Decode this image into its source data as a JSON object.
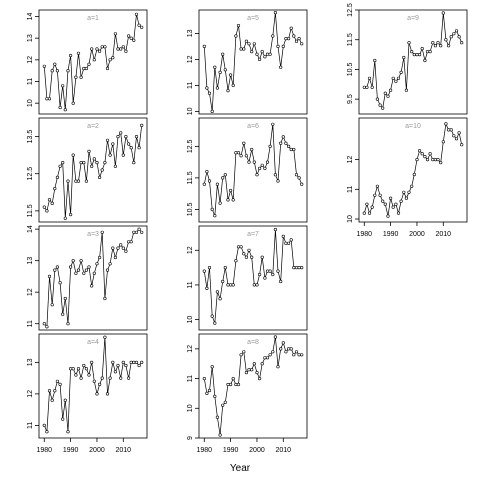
{
  "chart_data": {
    "type": "line",
    "xlabel": "Year",
    "panels": [
      {
        "label": "a=1",
        "ylim": [
          9.5,
          14.3
        ],
        "yticks": [
          10,
          11,
          12,
          13,
          14
        ],
        "xlim": [
          1978,
          2019
        ],
        "xticks": [],
        "x": [
          1980,
          1981,
          1982,
          1983,
          1984,
          1985,
          1986,
          1987,
          1988,
          1989,
          1990,
          1991,
          1992,
          1993,
          1994,
          1995,
          1996,
          1997,
          1998,
          1999,
          2000,
          2001,
          2002,
          2003,
          2004,
          2005,
          2006,
          2007,
          2008,
          2009,
          2010,
          2011,
          2012,
          2013,
          2014,
          2015,
          2016,
          2017
        ],
        "y": [
          11.7,
          10.2,
          10.2,
          11.5,
          11.8,
          11.5,
          9.8,
          10.8,
          9.7,
          11.5,
          12.2,
          10.0,
          11.2,
          12.3,
          11.2,
          11.6,
          11.6,
          11.8,
          12.5,
          12.0,
          12.5,
          12.4,
          12.6,
          12.6,
          11.6,
          12.0,
          12.1,
          13.2,
          12.5,
          12.5,
          12.6,
          12.4,
          13.1,
          13.0,
          12.9,
          14.1,
          13.6,
          13.5
        ]
      },
      {
        "label": "a=5",
        "ylim": [
          9.9,
          13.9
        ],
        "yticks": [
          10,
          11,
          12,
          13
        ],
        "xlim": [
          1978,
          2019
        ],
        "xticks": [],
        "x": [
          1980,
          1981,
          1982,
          1983,
          1984,
          1985,
          1986,
          1987,
          1988,
          1989,
          1990,
          1991,
          1992,
          1993,
          1994,
          1995,
          1996,
          1997,
          1998,
          1999,
          2000,
          2001,
          2002,
          2003,
          2004,
          2005,
          2006,
          2007,
          2008,
          2009,
          2010,
          2011,
          2012,
          2013,
          2014,
          2015,
          2016,
          2017
        ],
        "y": [
          12.5,
          10.9,
          10.7,
          10.0,
          11.7,
          10.9,
          11.5,
          12.2,
          11.6,
          10.8,
          11.4,
          11.0,
          12.9,
          13.3,
          12.4,
          12.4,
          12.7,
          12.6,
          12.3,
          12.6,
          12.2,
          12.0,
          12.3,
          12.1,
          12.2,
          12.2,
          12.9,
          13.8,
          12.5,
          11.7,
          12.5,
          12.8,
          12.8,
          13.2,
          12.9,
          12.7,
          12.8,
          12.6
        ]
      },
      {
        "label": "a=9",
        "ylim": [
          9.0,
          12.5
        ],
        "yticks": [
          9.5,
          10.5,
          11.5,
          12.5
        ],
        "xlim": [
          1978,
          2019
        ],
        "xticks": [],
        "x": [
          1980,
          1981,
          1982,
          1983,
          1984,
          1985,
          1986,
          1987,
          1988,
          1989,
          1990,
          1991,
          1992,
          1993,
          1994,
          1995,
          1996,
          1997,
          1998,
          1999,
          2000,
          2001,
          2002,
          2003,
          2004,
          2005,
          2006,
          2007,
          2008,
          2009,
          2010,
          2011,
          2012,
          2013,
          2014,
          2015,
          2016,
          2017
        ],
        "y": [
          9.9,
          9.9,
          10.2,
          9.9,
          10.8,
          9.5,
          9.3,
          9.2,
          9.7,
          9.6,
          9.8,
          10.2,
          10.1,
          10.2,
          10.4,
          10.9,
          9.8,
          11.4,
          11.1,
          11.0,
          11.0,
          11.0,
          11.2,
          10.8,
          11.1,
          11.1,
          11.4,
          11.3,
          11.4,
          11.3,
          12.4,
          11.5,
          11.3,
          11.6,
          11.7,
          11.8,
          11.6,
          11.4
        ]
      },
      {
        "label": "a=2",
        "ylim": [
          11.2,
          14.0
        ],
        "yticks": [
          11.5,
          12.5,
          13.5
        ],
        "xlim": [
          1978,
          2019
        ],
        "xticks": [],
        "x": [
          1980,
          1981,
          1982,
          1983,
          1984,
          1985,
          1986,
          1987,
          1988,
          1989,
          1990,
          1991,
          1992,
          1993,
          1994,
          1995,
          1996,
          1997,
          1998,
          1999,
          2000,
          2001,
          2002,
          2003,
          2004,
          2005,
          2006,
          2007,
          2008,
          2009,
          2010,
          2011,
          2012,
          2013,
          2014,
          2015,
          2016,
          2017
        ],
        "y": [
          11.6,
          11.5,
          11.8,
          11.7,
          12.1,
          12.4,
          12.7,
          12.8,
          11.3,
          12.3,
          11.4,
          13.0,
          12.3,
          12.3,
          12.8,
          12.8,
          12.3,
          13.1,
          12.7,
          12.9,
          12.8,
          12.4,
          12.6,
          12.8,
          13.4,
          13.0,
          13.3,
          12.7,
          13.5,
          13.6,
          13.0,
          13.5,
          13.3,
          13.2,
          12.8,
          13.5,
          13.2,
          13.8
        ]
      },
      {
        "label": "a=6",
        "ylim": [
          10.1,
          13.4
        ],
        "yticks": [
          10.5,
          11.5,
          12.5
        ],
        "xlim": [
          1978,
          2019
        ],
        "xticks": [],
        "x": [
          1980,
          1981,
          1982,
          1983,
          1984,
          1985,
          1986,
          1987,
          1988,
          1989,
          1990,
          1991,
          1992,
          1993,
          1994,
          1995,
          1996,
          1997,
          1998,
          1999,
          2000,
          2001,
          2002,
          2003,
          2004,
          2005,
          2006,
          2007,
          2008,
          2009,
          2010,
          2011,
          2012,
          2013,
          2014,
          2015,
          2016,
          2017
        ],
        "y": [
          11.3,
          11.7,
          11.4,
          10.5,
          10.3,
          11.3,
          10.7,
          11.5,
          11.6,
          10.8,
          11.1,
          10.8,
          12.3,
          12.3,
          12.2,
          12.6,
          12.2,
          12.0,
          12.4,
          12.0,
          11.6,
          11.8,
          11.9,
          11.8,
          12.0,
          12.5,
          13.2,
          11.6,
          11.4,
          12.6,
          12.8,
          12.6,
          12.5,
          12.4,
          12.4,
          11.6,
          11.5,
          11.3
        ]
      },
      {
        "label": "a=10",
        "ylim": [
          9.9,
          13.4
        ],
        "yticks": [
          10.0,
          11.0,
          12.0
        ],
        "xlim": [
          1978,
          2019
        ],
        "xticks": [
          1980,
          1990,
          2000,
          2010
        ],
        "x": [
          1980,
          1981,
          1982,
          1983,
          1984,
          1985,
          1986,
          1987,
          1988,
          1989,
          1990,
          1991,
          1992,
          1993,
          1994,
          1995,
          1996,
          1997,
          1998,
          1999,
          2000,
          2001,
          2002,
          2003,
          2004,
          2005,
          2006,
          2007,
          2008,
          2009,
          2010,
          2011,
          2012,
          2013,
          2014,
          2015,
          2016,
          2017
        ],
        "y": [
          10.2,
          10.5,
          10.2,
          10.4,
          10.8,
          11.1,
          10.8,
          10.6,
          10.5,
          10.1,
          10.7,
          10.4,
          10.5,
          10.2,
          10.6,
          10.9,
          10.7,
          10.9,
          11.1,
          11.5,
          12.0,
          12.3,
          12.2,
          12.1,
          12.0,
          12.2,
          12.0,
          12.0,
          12.0,
          11.9,
          12.6,
          13.2,
          13.0,
          13.0,
          12.8,
          12.7,
          12.9,
          12.5
        ]
      },
      {
        "label": "a=3",
        "ylim": [
          10.8,
          14.1
        ],
        "yticks": [
          11,
          12,
          13,
          14
        ],
        "xlim": [
          1978,
          2019
        ],
        "xticks": [],
        "x": [
          1980,
          1981,
          1982,
          1983,
          1984,
          1985,
          1986,
          1987,
          1988,
          1989,
          1990,
          1991,
          1992,
          1993,
          1994,
          1995,
          1996,
          1997,
          1998,
          1999,
          2000,
          2001,
          2002,
          2003,
          2004,
          2005,
          2006,
          2007,
          2008,
          2009,
          2010,
          2011,
          2012,
          2013,
          2014,
          2015,
          2016,
          2017
        ],
        "y": [
          11.0,
          10.9,
          12.5,
          11.6,
          12.7,
          12.8,
          12.3,
          11.3,
          11.8,
          11.0,
          12.8,
          13.0,
          12.6,
          12.7,
          13.0,
          12.6,
          12.7,
          12.8,
          12.2,
          12.6,
          12.9,
          13.1,
          13.9,
          11.8,
          12.7,
          12.9,
          13.4,
          13.1,
          13.4,
          13.5,
          13.4,
          13.3,
          13.6,
          13.6,
          13.9,
          13.9,
          14.0,
          13.9
        ]
      },
      {
        "label": "a=7",
        "ylim": [
          9.7,
          12.7
        ],
        "yticks": [
          10.0,
          11.0,
          12.0
        ],
        "xlim": [
          1978,
          2019
        ],
        "xticks": [],
        "x": [
          1980,
          1981,
          1982,
          1983,
          1984,
          1985,
          1986,
          1987,
          1988,
          1989,
          1990,
          1991,
          1992,
          1993,
          1994,
          1995,
          1996,
          1997,
          1998,
          1999,
          2000,
          2001,
          2002,
          2003,
          2004,
          2005,
          2006,
          2007,
          2008,
          2009,
          2010,
          2011,
          2012,
          2013,
          2014,
          2015,
          2016,
          2017
        ],
        "y": [
          11.4,
          10.9,
          11.5,
          10.1,
          9.9,
          10.8,
          10.6,
          11.1,
          11.5,
          11.0,
          11.0,
          11.0,
          11.7,
          12.1,
          12.1,
          11.9,
          11.8,
          12.0,
          11.8,
          11.0,
          11.0,
          11.3,
          11.8,
          11.2,
          11.4,
          11.4,
          11.3,
          12.6,
          11.4,
          11.1,
          12.4,
          12.2,
          12.2,
          12.3,
          11.5,
          11.5,
          11.5,
          11.5
        ]
      },
      {
        "label": "a=4",
        "ylim": [
          10.6,
          13.9
        ],
        "yticks": [
          11.0,
          12.0,
          13.0
        ],
        "xlim": [
          1978,
          2019
        ],
        "xticks": [
          1980,
          1990,
          2000,
          2010
        ],
        "x": [
          1980,
          1981,
          1982,
          1983,
          1984,
          1985,
          1986,
          1987,
          1988,
          1989,
          1990,
          1991,
          1992,
          1993,
          1994,
          1995,
          1996,
          1997,
          1998,
          1999,
          2000,
          2001,
          2002,
          2003,
          2004,
          2005,
          2006,
          2007,
          2008,
          2009,
          2010,
          2011,
          2012,
          2013,
          2014,
          2015,
          2016,
          2017
        ],
        "y": [
          11.0,
          10.8,
          12.1,
          11.8,
          12.1,
          12.4,
          12.3,
          11.2,
          11.8,
          10.8,
          12.8,
          12.8,
          12.6,
          12.8,
          12.5,
          12.9,
          12.8,
          12.6,
          13.0,
          12.4,
          12.0,
          12.3,
          12.5,
          13.8,
          12.0,
          12.5,
          13.0,
          12.7,
          12.9,
          12.5,
          13.0,
          12.9,
          12.5,
          13.0,
          13.0,
          13.0,
          12.9,
          13.0
        ]
      },
      {
        "label": "a=8",
        "ylim": [
          9.0,
          12.5
        ],
        "yticks": [
          9.0,
          10.0,
          11.0,
          12.0
        ],
        "xlim": [
          1978,
          2019
        ],
        "xticks": [
          1980,
          1990,
          2000,
          2010
        ],
        "x": [
          1980,
          1981,
          1982,
          1983,
          1984,
          1985,
          1986,
          1987,
          1988,
          1989,
          1990,
          1991,
          1992,
          1993,
          1994,
          1995,
          1996,
          1997,
          1998,
          1999,
          2000,
          2001,
          2002,
          2003,
          2004,
          2005,
          2006,
          2007,
          2008,
          2009,
          2010,
          2011,
          2012,
          2013,
          2014,
          2015,
          2016,
          2017
        ],
        "y": [
          11.0,
          10.5,
          10.6,
          11.4,
          10.4,
          9.7,
          9.1,
          10.1,
          10.2,
          10.8,
          10.8,
          11.0,
          10.8,
          10.8,
          11.8,
          11.9,
          11.2,
          11.3,
          11.3,
          11.5,
          11.2,
          11.0,
          11.5,
          11.7,
          11.7,
          11.8,
          11.9,
          12.4,
          11.4,
          12.0,
          12.2,
          11.9,
          12.0,
          12.0,
          11.8,
          11.9,
          11.8,
          11.8
        ]
      }
    ]
  }
}
